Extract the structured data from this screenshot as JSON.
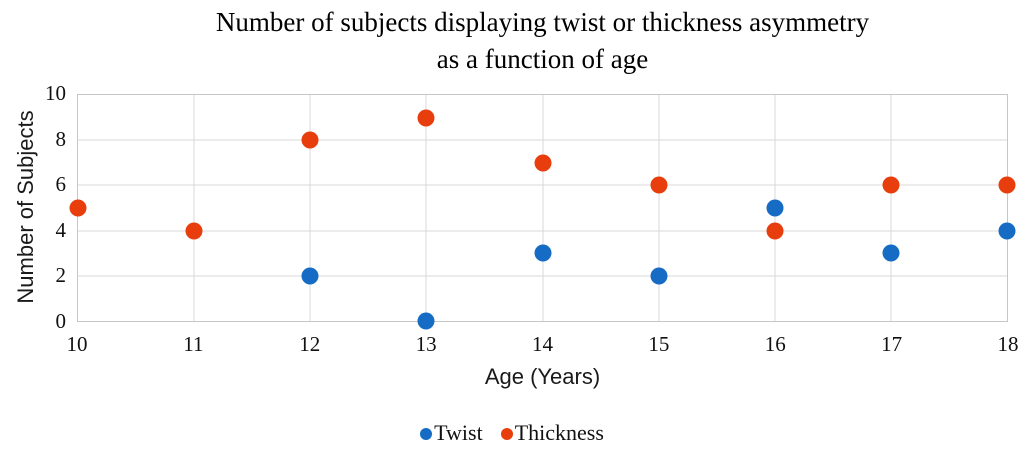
{
  "title": {
    "line1": "Number of subjects displaying twist or thickness asymmetry",
    "line2": "as a function of age"
  },
  "chart_data": {
    "type": "scatter",
    "title": "Number of subjects displaying twist or thickness asymmetry as a function of age",
    "xlabel": "Age (Years)",
    "ylabel": "Number of Subjects",
    "x": [
      10,
      11,
      12,
      13,
      14,
      15,
      16,
      17,
      18
    ],
    "xlim": [
      10,
      18
    ],
    "ylim": [
      0,
      10
    ],
    "y_ticks": [
      0,
      2,
      4,
      6,
      8,
      10
    ],
    "grid": true,
    "legend_position": "bottom",
    "colors": {
      "twist": "#166cc4",
      "thickness": "#e83e0d",
      "gridline": "#d9d9d9"
    },
    "series": [
      {
        "name": "Twist",
        "color": "#166cc4",
        "values": [
          null,
          null,
          2,
          0,
          3,
          2,
          5,
          3,
          4
        ]
      },
      {
        "name": "Thickness",
        "color": "#e83e0d",
        "values": [
          5,
          4,
          8,
          9,
          7,
          6,
          4,
          6,
          6
        ]
      }
    ]
  }
}
